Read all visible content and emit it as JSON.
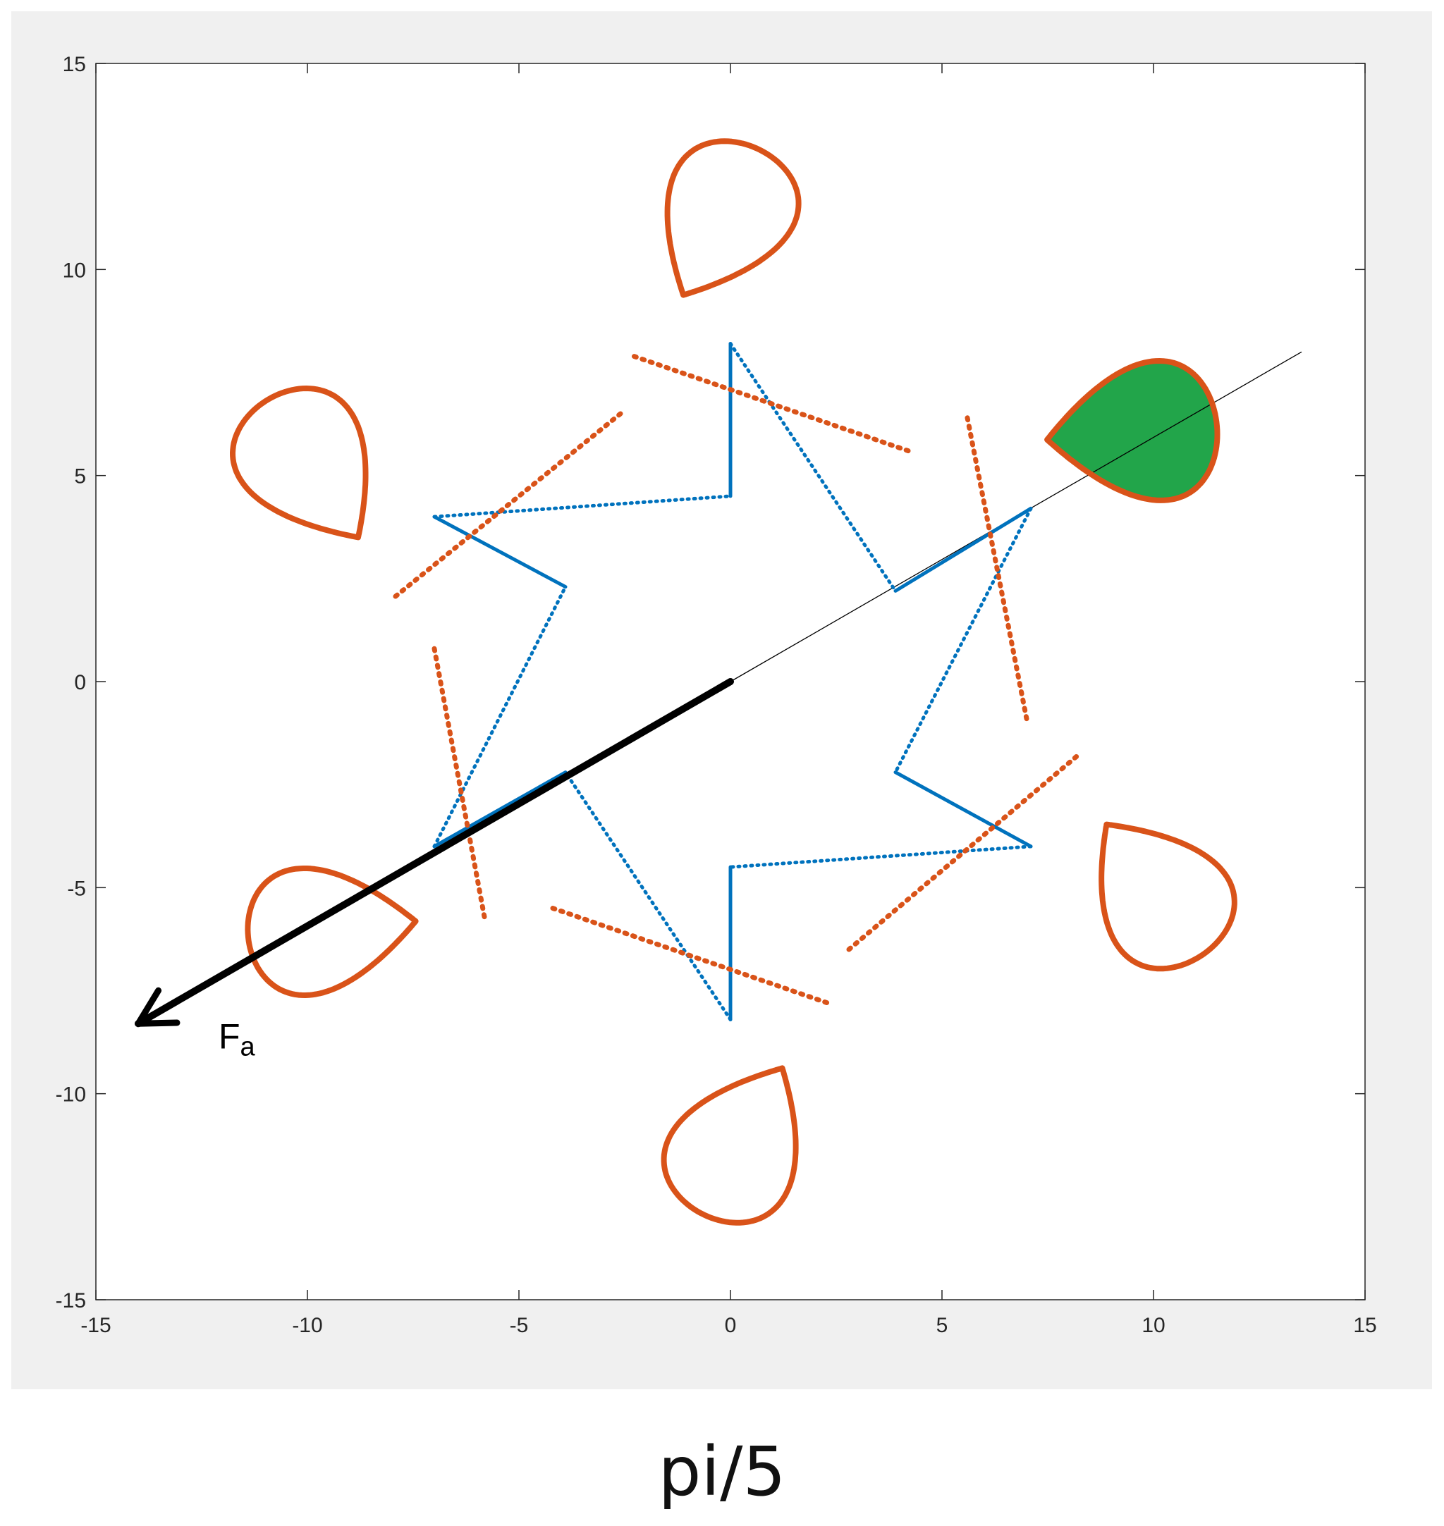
{
  "caption": "pi/5",
  "colors": {
    "panel_bg": "#f0f0f0",
    "axes_bg": "#ffffff",
    "axis": "#262626",
    "orange": "#d95319",
    "blue": "#0072bd",
    "green": "#22a54a",
    "arrow": "#000000"
  },
  "chart_data": {
    "type": "line",
    "title": "",
    "xlabel": "",
    "ylabel": "",
    "xlim": [
      -15,
      15
    ],
    "ylim": [
      -15,
      15
    ],
    "xticks": [
      -15,
      -10,
      -5,
      0,
      5,
      10,
      15
    ],
    "yticks": [
      -15,
      -10,
      -5,
      0,
      5,
      10,
      15
    ],
    "xtick_labels": [
      "-15",
      "-10",
      "-5",
      "0",
      "5",
      "10",
      "15"
    ],
    "ytick_labels": [
      "15",
      "10",
      "5",
      "0",
      "-5",
      "-10",
      "-15"
    ],
    "grid": false,
    "blue_zigzag_vertices": [
      [
        0,
        4.5
      ],
      [
        0,
        8.2
      ],
      [
        3.9,
        2.2
      ],
      [
        7.1,
        4.2
      ],
      [
        3.9,
        -2.2
      ],
      [
        7.1,
        -4.0
      ],
      [
        0,
        -4.5
      ],
      [
        0,
        -8.2
      ],
      [
        -3.9,
        -2.2
      ],
      [
        -7.0,
        -4.0
      ],
      [
        -3.9,
        2.3
      ],
      [
        -7.0,
        4.0
      ]
    ],
    "orange_dotted_vertices": [
      [
        4.2,
        5.6
      ],
      [
        -2.3,
        7.9
      ],
      [
        -2.6,
        6.5
      ],
      [
        -8.0,
        2.0
      ],
      [
        -7.0,
        0.8
      ],
      [
        -5.8,
        -5.8
      ],
      [
        -4.2,
        -5.5
      ],
      [
        2.3,
        -7.8
      ],
      [
        2.8,
        -6.5
      ],
      [
        8.2,
        -1.8
      ],
      [
        7.0,
        -0.9
      ],
      [
        5.6,
        6.4
      ]
    ],
    "orange_loops": [
      {
        "base": [
          4.2,
          5.6
        ],
        "tip": [
          11.5,
          6.2
        ],
        "width": 2.2,
        "loop_start": 0.45,
        "tail": 1.45
      },
      {
        "base": [
          -2.6,
          6.5
        ],
        "tip": [
          0.7,
          12.9
        ],
        "width": 2.0,
        "loop_start": 0.45,
        "tail": 1.45
      },
      {
        "base": [
          -7.0,
          0.8
        ],
        "tip": [
          -11.0,
          6.8
        ],
        "width": 2.0,
        "loop_start": 0.45,
        "tail": 1.45
      },
      {
        "base": [
          -4.2,
          -5.5
        ],
        "tip": [
          -11.4,
          -6.2
        ],
        "width": 2.0,
        "loop_start": 0.45,
        "tail": 1.45
      },
      {
        "base": [
          2.8,
          -6.5
        ],
        "tip": [
          -0.7,
          -12.9
        ],
        "width": 2.0,
        "loop_start": 0.45,
        "tail": 1.45
      },
      {
        "base": [
          7.0,
          -0.9
        ],
        "tip": [
          11.2,
          -6.6
        ],
        "width": 2.0,
        "loop_start": 0.45,
        "tail": 1.45
      }
    ],
    "thin_line": {
      "from": [
        0,
        0
      ],
      "to": [
        13.5,
        8.0
      ]
    },
    "force_arrow": {
      "from": [
        0,
        0
      ],
      "to": [
        -14.0,
        -8.3
      ],
      "label_main": "F",
      "label_sub": "a",
      "label_at": [
        -12.1,
        -8.9
      ]
    }
  }
}
